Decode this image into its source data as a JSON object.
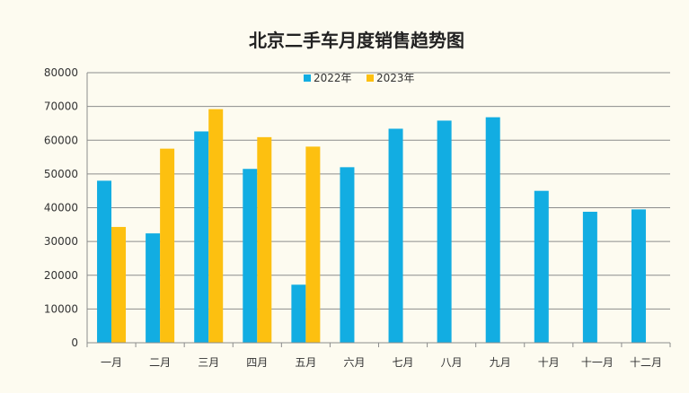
{
  "chart_data": {
    "type": "bar",
    "title": "北京二手车月度销售趋势图",
    "xlabel": "",
    "ylabel": "",
    "categories": [
      "一月",
      "二月",
      "三月",
      "四月",
      "五月",
      "六月",
      "七月",
      "八月",
      "九月",
      "十月",
      "十一月",
      "十二月"
    ],
    "series": [
      {
        "name": "2022年",
        "color": "#12ade2",
        "values": [
          48000,
          32400,
          62600,
          51500,
          17200,
          52000,
          63400,
          65800,
          66800,
          45000,
          38800,
          39500
        ]
      },
      {
        "name": "2023年",
        "color": "#fdc010",
        "values": [
          34300,
          57500,
          69200,
          60900,
          58100,
          null,
          null,
          null,
          null,
          null,
          null,
          null
        ]
      }
    ],
    "ylim": [
      0,
      80000
    ],
    "yticks": [
      0,
      10000,
      20000,
      30000,
      40000,
      50000,
      60000,
      70000,
      80000
    ],
    "ytick_labels": [
      "0",
      "10000",
      "20000",
      "30000",
      "40000",
      "50000",
      "60000",
      "70000",
      "80000"
    ],
    "grid": true,
    "legend_position": "top-center",
    "background_color": "#fdfbf0",
    "gridline_color": "#8c8c8c"
  }
}
